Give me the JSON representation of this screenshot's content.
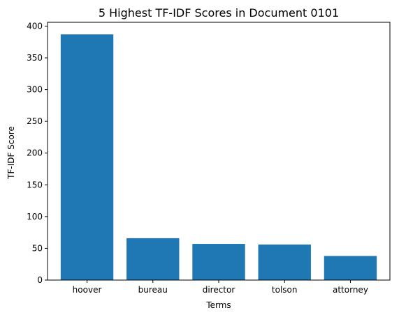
{
  "chart_data": {
    "type": "bar",
    "title": "5 Highest TF-IDF Scores in Document 0101",
    "xlabel": "Terms",
    "ylabel": "TF-IDF Score",
    "categories": [
      "hoover",
      "bureau",
      "director",
      "tolson",
      "attorney"
    ],
    "values": [
      387,
      66,
      57,
      56,
      38
    ],
    "ylim": [
      0,
      406
    ],
    "yticks": [
      0,
      50,
      100,
      150,
      200,
      250,
      300,
      350,
      400
    ],
    "bar_color": "#1f77b4",
    "grid": false
  }
}
